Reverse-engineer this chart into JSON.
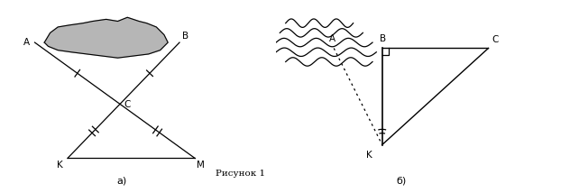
{
  "fig_width": 6.42,
  "fig_height": 2.14,
  "dpi": 100,
  "bg_color": "#ffffff",
  "line_color": "#000000",
  "gray_fill": "#aaaaaa",
  "label_a_left": "A",
  "label_b_left": "B",
  "label_c_left": "C",
  "label_k_left": "K",
  "label_m_left": "M",
  "label_sub_a": "а)",
  "label_fig": "Рисунок 1",
  "label_a_right": "A",
  "label_b_right": "B",
  "label_c_right": "C",
  "label_k_right": "K",
  "label_sub_b": "б)"
}
